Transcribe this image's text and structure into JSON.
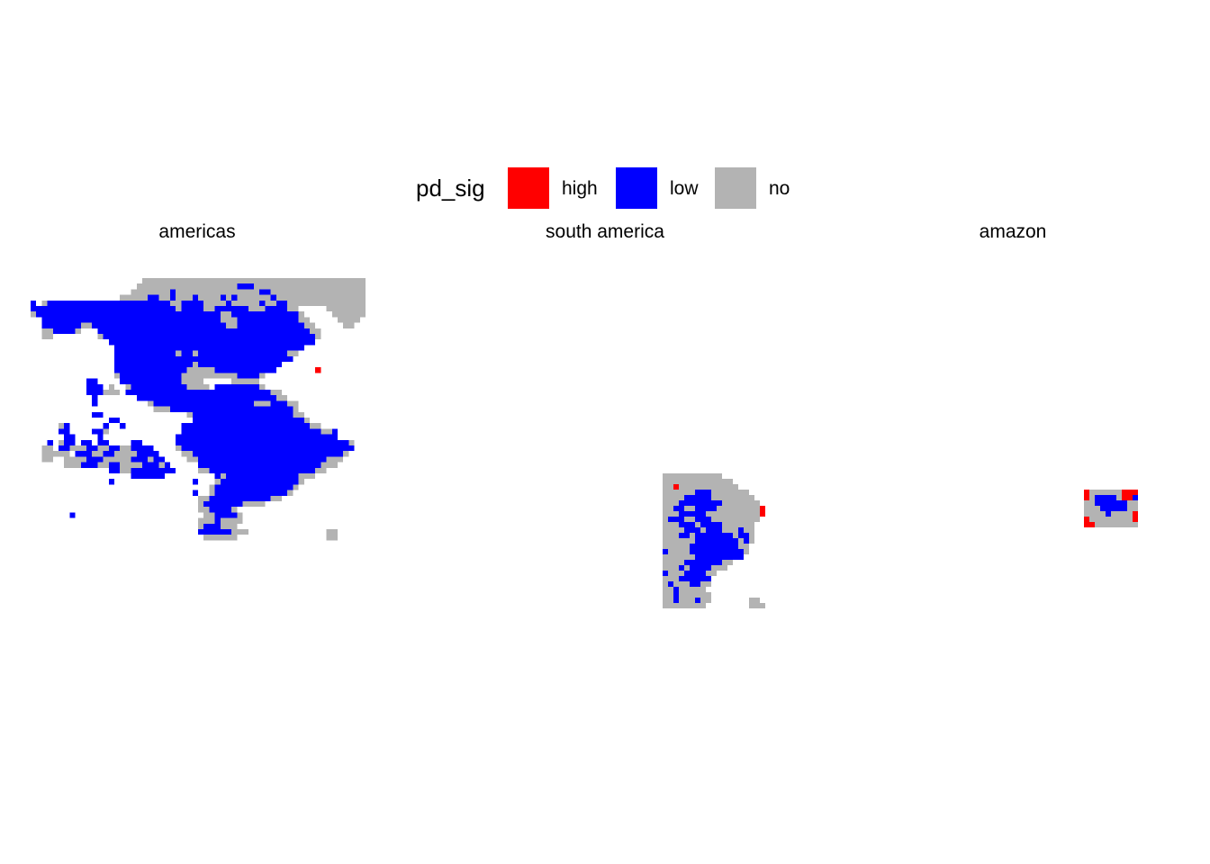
{
  "legend": {
    "title": "pd_sig",
    "items": [
      {
        "label": "high",
        "color": "#ff0000"
      },
      {
        "label": "low",
        "color": "#0000ff"
      },
      {
        "label": "no",
        "color": "#b3b3b3"
      }
    ]
  },
  "panels": [
    {
      "title": "americas"
    },
    {
      "title": "south america"
    },
    {
      "title": "amazon"
    }
  ]
}
